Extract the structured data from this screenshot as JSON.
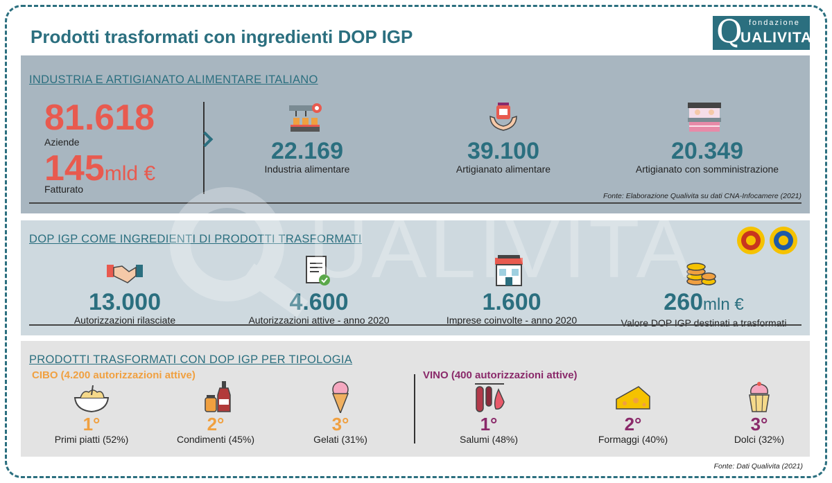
{
  "header": {
    "title": "Prodotti trasformati con ingredienti DOP IGP"
  },
  "logo": {
    "q": "Q",
    "top": "fondazione",
    "bottom": "UALIVITA"
  },
  "watermark": "UALIVITA",
  "section1": {
    "title": "INDUSTRIA E ARTIGIANATO ALIMENTARE ITALIANO",
    "aziende_value": "81.618",
    "aziende_label": "Aziende",
    "fatturato_value": "145",
    "fatturato_unit": "mld €",
    "fatturato_label": "Fatturato",
    "stats": [
      {
        "value": "22.169",
        "label": "Industria alimentare",
        "icon": "factory-icon"
      },
      {
        "value": "39.100",
        "label": "Artigianato alimentare",
        "icon": "hands-jar-icon"
      },
      {
        "value": "20.349",
        "label": "Artigianato con somministrazione",
        "icon": "shop-counter-icon"
      }
    ],
    "source": "Fonte: Elaborazione Qualivita su dati CNA-Infocamere (2021)"
  },
  "section2": {
    "title": "DOP IGP COME INGREDIENTI DI PRODOTTI TRASFORMATI",
    "stats": [
      {
        "value": "13.000",
        "unit": "",
        "label": "Autorizzazioni rilasciate",
        "icon": "handshake-icon"
      },
      {
        "value": "4.600",
        "unit": "",
        "label": "Autorizzazioni attive - anno 2020",
        "icon": "certificate-icon"
      },
      {
        "value": "1.600",
        "unit": "",
        "label": "Imprese coinvolte - anno 2020",
        "icon": "store-icon"
      },
      {
        "value": "260",
        "unit": "mln €",
        "label": "Valore DOP IGP destinati a trasformati",
        "icon": "coins-icon"
      }
    ]
  },
  "section3": {
    "title": "PRODOTTI TRASFORMATI CON DOP IGP PER TIPOLOGIA",
    "cibo": {
      "title": "CIBO (4.200 autorizzazioni attive)",
      "items": [
        {
          "rank": "1°",
          "label": "Primi piatti (52%)",
          "icon": "pasta-icon"
        },
        {
          "rank": "2°",
          "label": "Condimenti (45%)",
          "icon": "condiments-icon"
        },
        {
          "rank": "3°",
          "label": "Gelati (31%)",
          "icon": "ice-cream-icon"
        }
      ]
    },
    "vino": {
      "title": "VINO (400 autorizzazioni attive)",
      "items": [
        {
          "rank": "1°",
          "label": "Salumi (48%)",
          "icon": "salami-icon"
        },
        {
          "rank": "2°",
          "label": "Formaggi (40%)",
          "icon": "cheese-icon"
        },
        {
          "rank": "3°",
          "label": "Dolci (32%)",
          "icon": "cupcake-icon"
        }
      ]
    }
  },
  "footer": {
    "source": "Fonte: Dati Qualivita (2021)"
  },
  "colors": {
    "teal": "#2b6f7f",
    "red": "#e85a4f",
    "orange": "#f0a040",
    "purple": "#8a2a6a"
  }
}
